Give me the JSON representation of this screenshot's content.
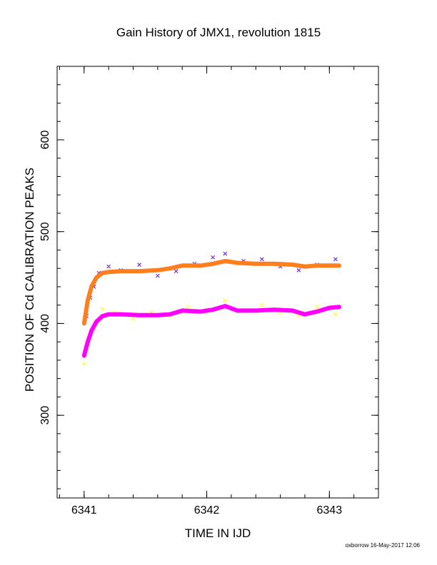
{
  "title": "Gain History of JMX1, revolution 1815",
  "footer": "oxborrow 16-May-2017 12:06",
  "chart_data": {
    "type": "scatter",
    "title": "Gain History of JMX1, revolution 1815",
    "xlabel": "TIME IN IJD",
    "ylabel": "POSITION OF Cd CALIBRATION PEAKS",
    "xlim": [
      6340.78,
      6343.4
    ],
    "ylim": [
      210,
      680
    ],
    "x_ticks": [
      6341,
      6342,
      6343
    ],
    "x_tick_labels": [
      "6341",
      "6342",
      "6343"
    ],
    "y_ticks": [
      300,
      400,
      500,
      600
    ],
    "y_tick_labels": [
      "300",
      "400",
      "500",
      "600"
    ],
    "grid": false,
    "legend": "none",
    "series": [
      {
        "role": "upper peak individual measurements",
        "marker": "x",
        "color": "#7b2fd6",
        "x": [
          6341.02,
          6341.05,
          6341.08,
          6341.12,
          6341.2,
          6341.3,
          6341.45,
          6341.6,
          6341.75,
          6341.9,
          6342.05,
          6342.15,
          6342.3,
          6342.45,
          6342.6,
          6342.75,
          6342.9,
          6343.05
        ],
        "y": [
          408,
          428,
          440,
          455,
          462,
          458,
          464,
          452,
          457,
          465,
          472,
          476,
          468,
          470,
          462,
          458,
          464,
          470
        ]
      },
      {
        "role": "upper peak smoothed trend",
        "marker": "line",
        "color": "#ff7f1e",
        "x": [
          6341.0,
          6341.03,
          6341.06,
          6341.1,
          6341.15,
          6341.2,
          6341.3,
          6341.45,
          6341.6,
          6341.7,
          6341.8,
          6341.95,
          6342.05,
          6342.15,
          6342.25,
          6342.4,
          6342.55,
          6342.7,
          6342.8,
          6342.9,
          6343.0,
          6343.08
        ],
        "y": [
          400,
          425,
          440,
          450,
          455,
          456,
          457,
          457,
          458,
          460,
          463,
          463,
          465,
          468,
          466,
          465,
          465,
          464,
          462,
          463,
          463,
          463
        ]
      },
      {
        "role": "lower peak individual measurements",
        "marker": "x",
        "color": "#ffff33",
        "x": [
          6341.0,
          6341.03,
          6341.06,
          6341.1,
          6341.15,
          6341.25,
          6341.4,
          6341.55,
          6341.7,
          6341.85,
          6342.0,
          6342.15,
          6342.3,
          6342.45,
          6342.6,
          6342.75,
          6342.9,
          6343.05
        ],
        "y": [
          356,
          375,
          392,
          402,
          416,
          412,
          405,
          412,
          408,
          418,
          412,
          425,
          415,
          420,
          412,
          408,
          418,
          410
        ]
      },
      {
        "role": "lower peak smoothed trend",
        "marker": "line",
        "color": "#ff00ff",
        "x": [
          6341.0,
          6341.03,
          6341.06,
          6341.1,
          6341.15,
          6341.2,
          6341.3,
          6341.45,
          6341.6,
          6341.7,
          6341.8,
          6341.95,
          6342.05,
          6342.15,
          6342.25,
          6342.4,
          6342.55,
          6342.7,
          6342.8,
          6342.9,
          6343.0,
          6343.08
        ],
        "y": [
          365,
          380,
          392,
          402,
          408,
          410,
          410,
          409,
          409,
          410,
          414,
          413,
          415,
          419,
          414,
          414,
          415,
          414,
          410,
          413,
          417,
          418
        ]
      }
    ]
  }
}
